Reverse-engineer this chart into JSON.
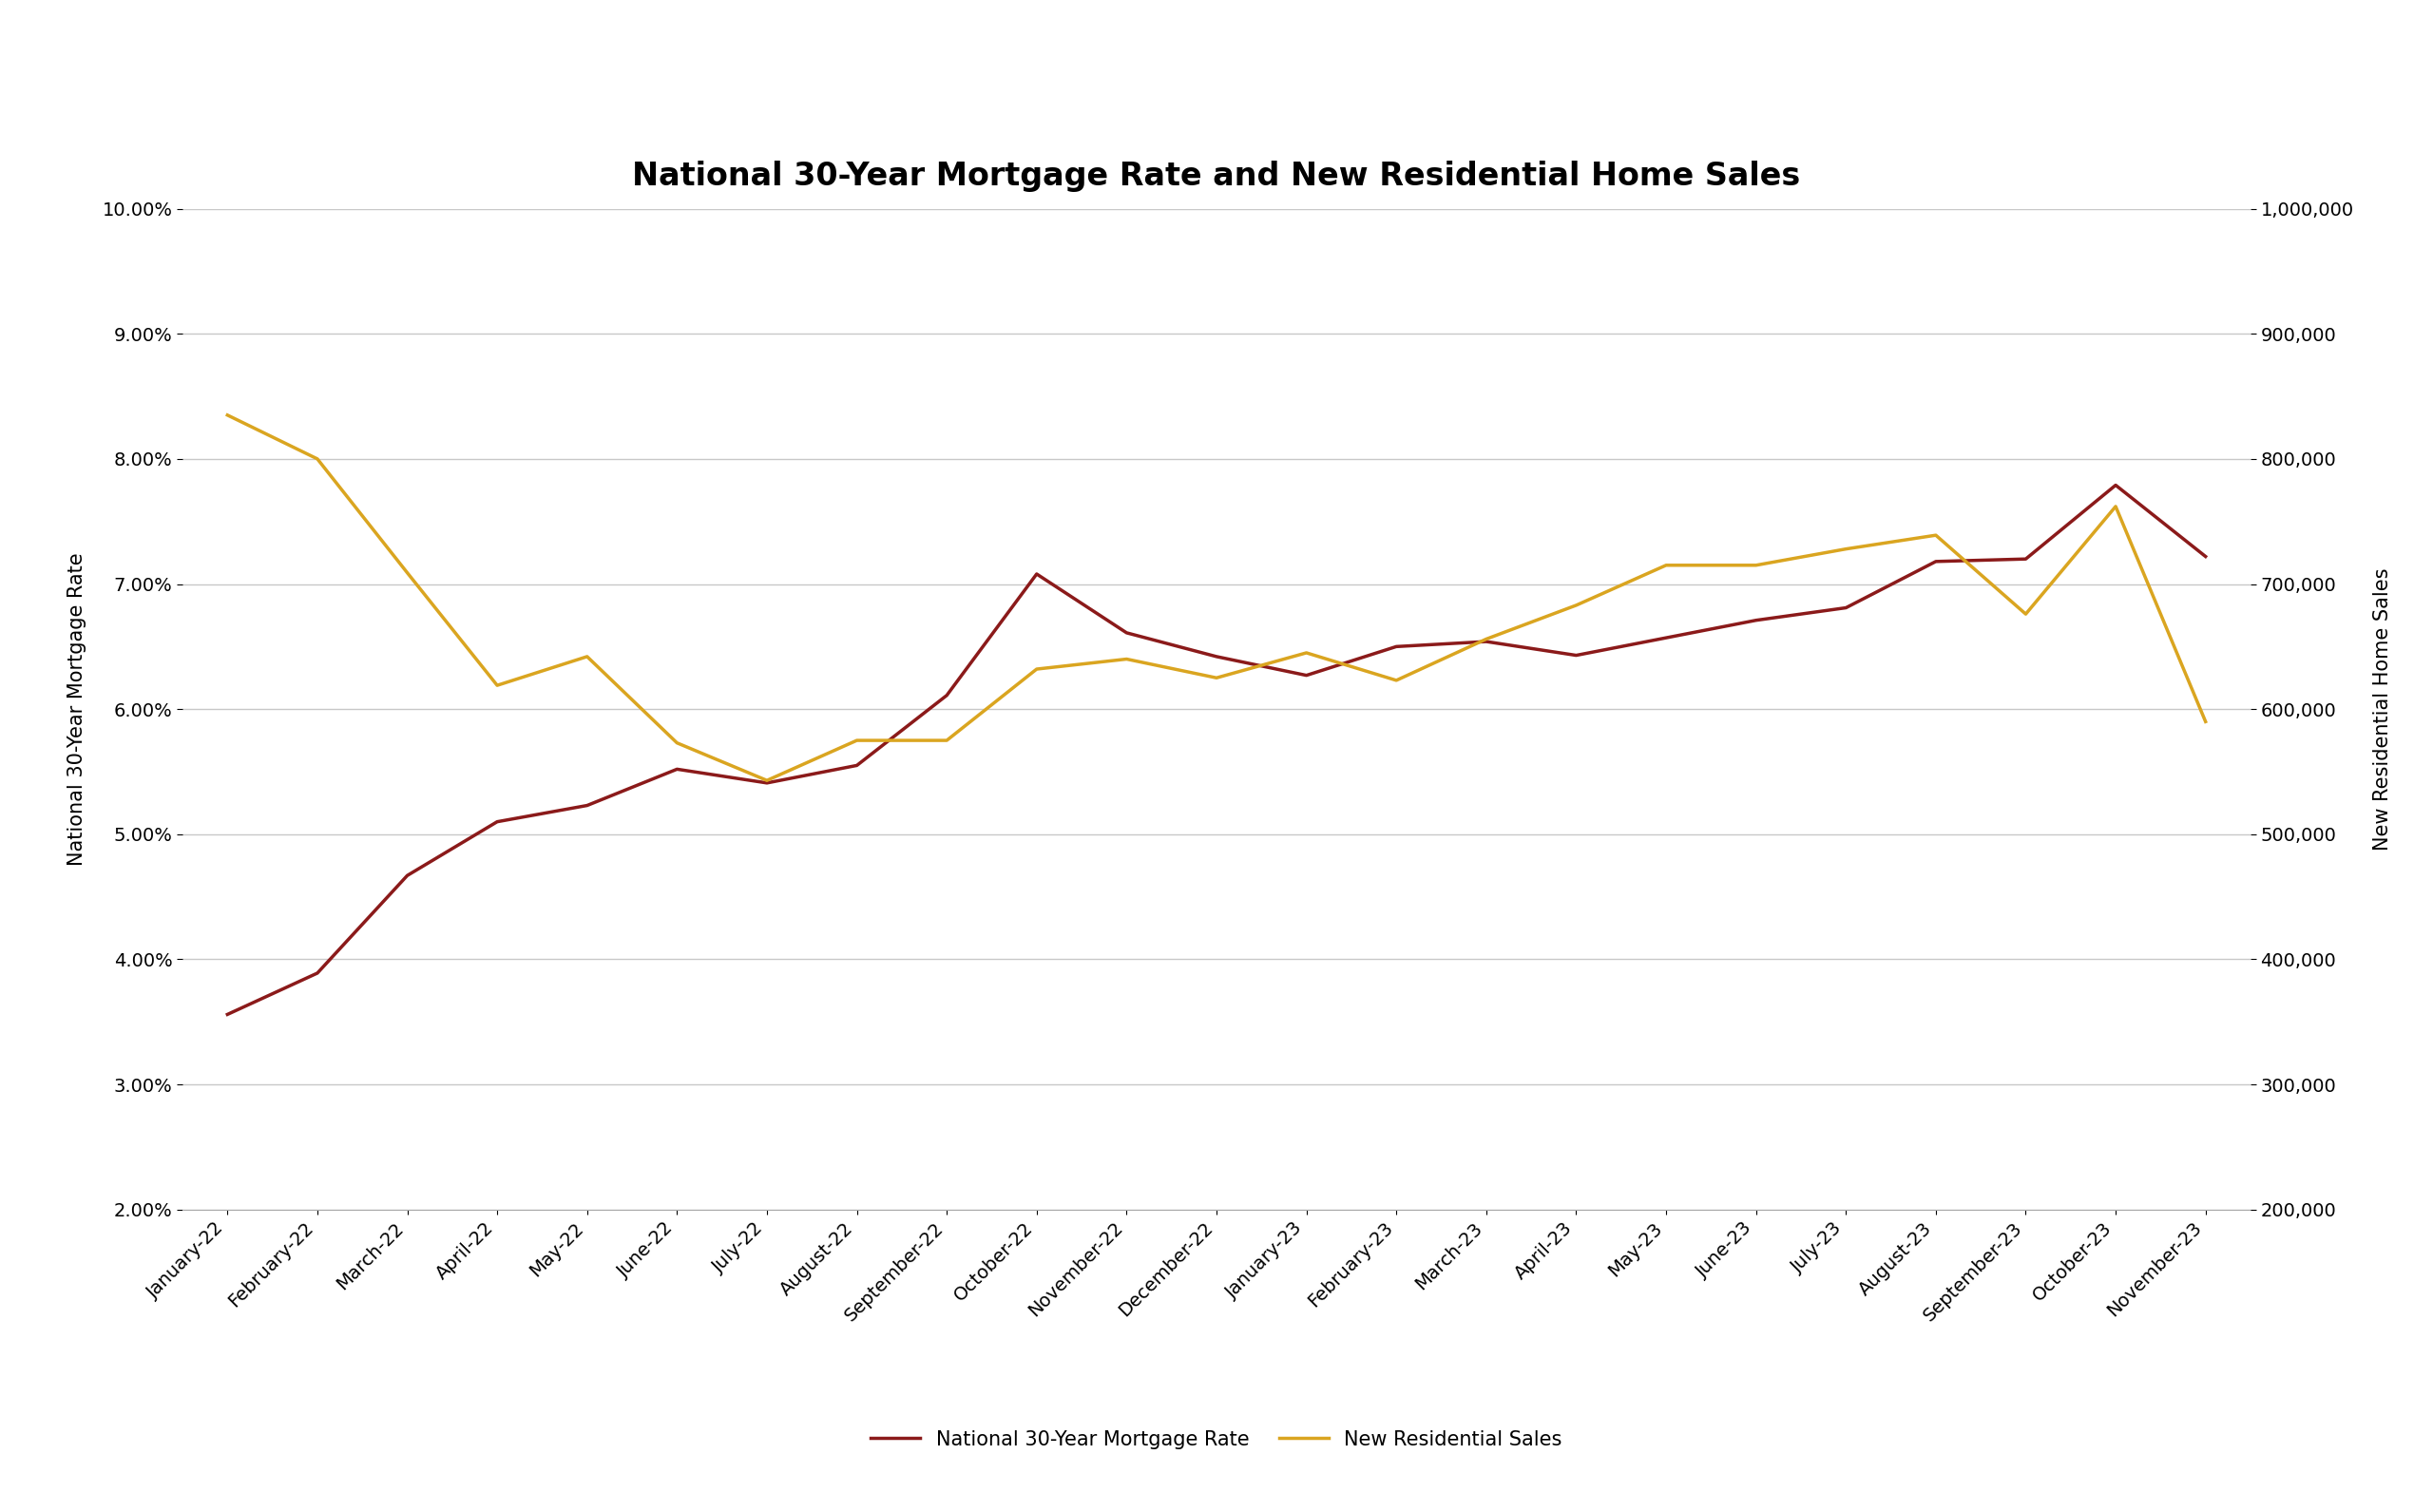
{
  "title": "National 30-Year Mortgage Rate and New Residential Home Sales",
  "categories": [
    "January-22",
    "February-22",
    "March-22",
    "April-22",
    "May-22",
    "June-22",
    "July-22",
    "August-22",
    "September-22",
    "October-22",
    "November-22",
    "December-22",
    "January-23",
    "February-23",
    "March-23",
    "April-23",
    "May-23",
    "June-23",
    "July-23",
    "August-23",
    "September-23",
    "October-23",
    "November-23"
  ],
  "mortgage_rate": [
    0.0356,
    0.0389,
    0.0467,
    0.051,
    0.0523,
    0.0552,
    0.0541,
    0.0555,
    0.0611,
    0.0708,
    0.0661,
    0.0642,
    0.0627,
    0.065,
    0.0654,
    0.0643,
    0.0657,
    0.0671,
    0.0681,
    0.0718,
    0.072,
    0.0779,
    0.0722
  ],
  "new_residential_sales": [
    835000,
    800000,
    709000,
    619000,
    642000,
    573000,
    543000,
    575000,
    575000,
    632000,
    640000,
    625000,
    645000,
    623000,
    656000,
    683000,
    715000,
    715000,
    728000,
    739000,
    676000,
    762000,
    590000
  ],
  "mortgage_color": "#8B1A1A",
  "sales_color": "#DAA520",
  "left_ylabel": "National 30-Year Mortgage Rate",
  "right_ylabel": "New Residential Home Sales",
  "left_ylim": [
    0.02,
    0.1
  ],
  "right_ylim": [
    200000,
    1000000
  ],
  "left_yticks": [
    0.02,
    0.03,
    0.04,
    0.05,
    0.06,
    0.07,
    0.08,
    0.09,
    0.1
  ],
  "right_yticks": [
    200000,
    300000,
    400000,
    500000,
    600000,
    700000,
    800000,
    900000,
    1000000
  ],
  "legend_labels": [
    "National 30-Year Mortgage Rate",
    "New Residential Sales"
  ],
  "background_color": "#FFFFFF",
  "grid_color": "#C8C8C8",
  "line_width": 2.5,
  "title_fontsize": 24,
  "axis_fontsize": 15,
  "tick_fontsize": 14,
  "legend_fontsize": 15,
  "black_bar_color": "#1A1A1A"
}
